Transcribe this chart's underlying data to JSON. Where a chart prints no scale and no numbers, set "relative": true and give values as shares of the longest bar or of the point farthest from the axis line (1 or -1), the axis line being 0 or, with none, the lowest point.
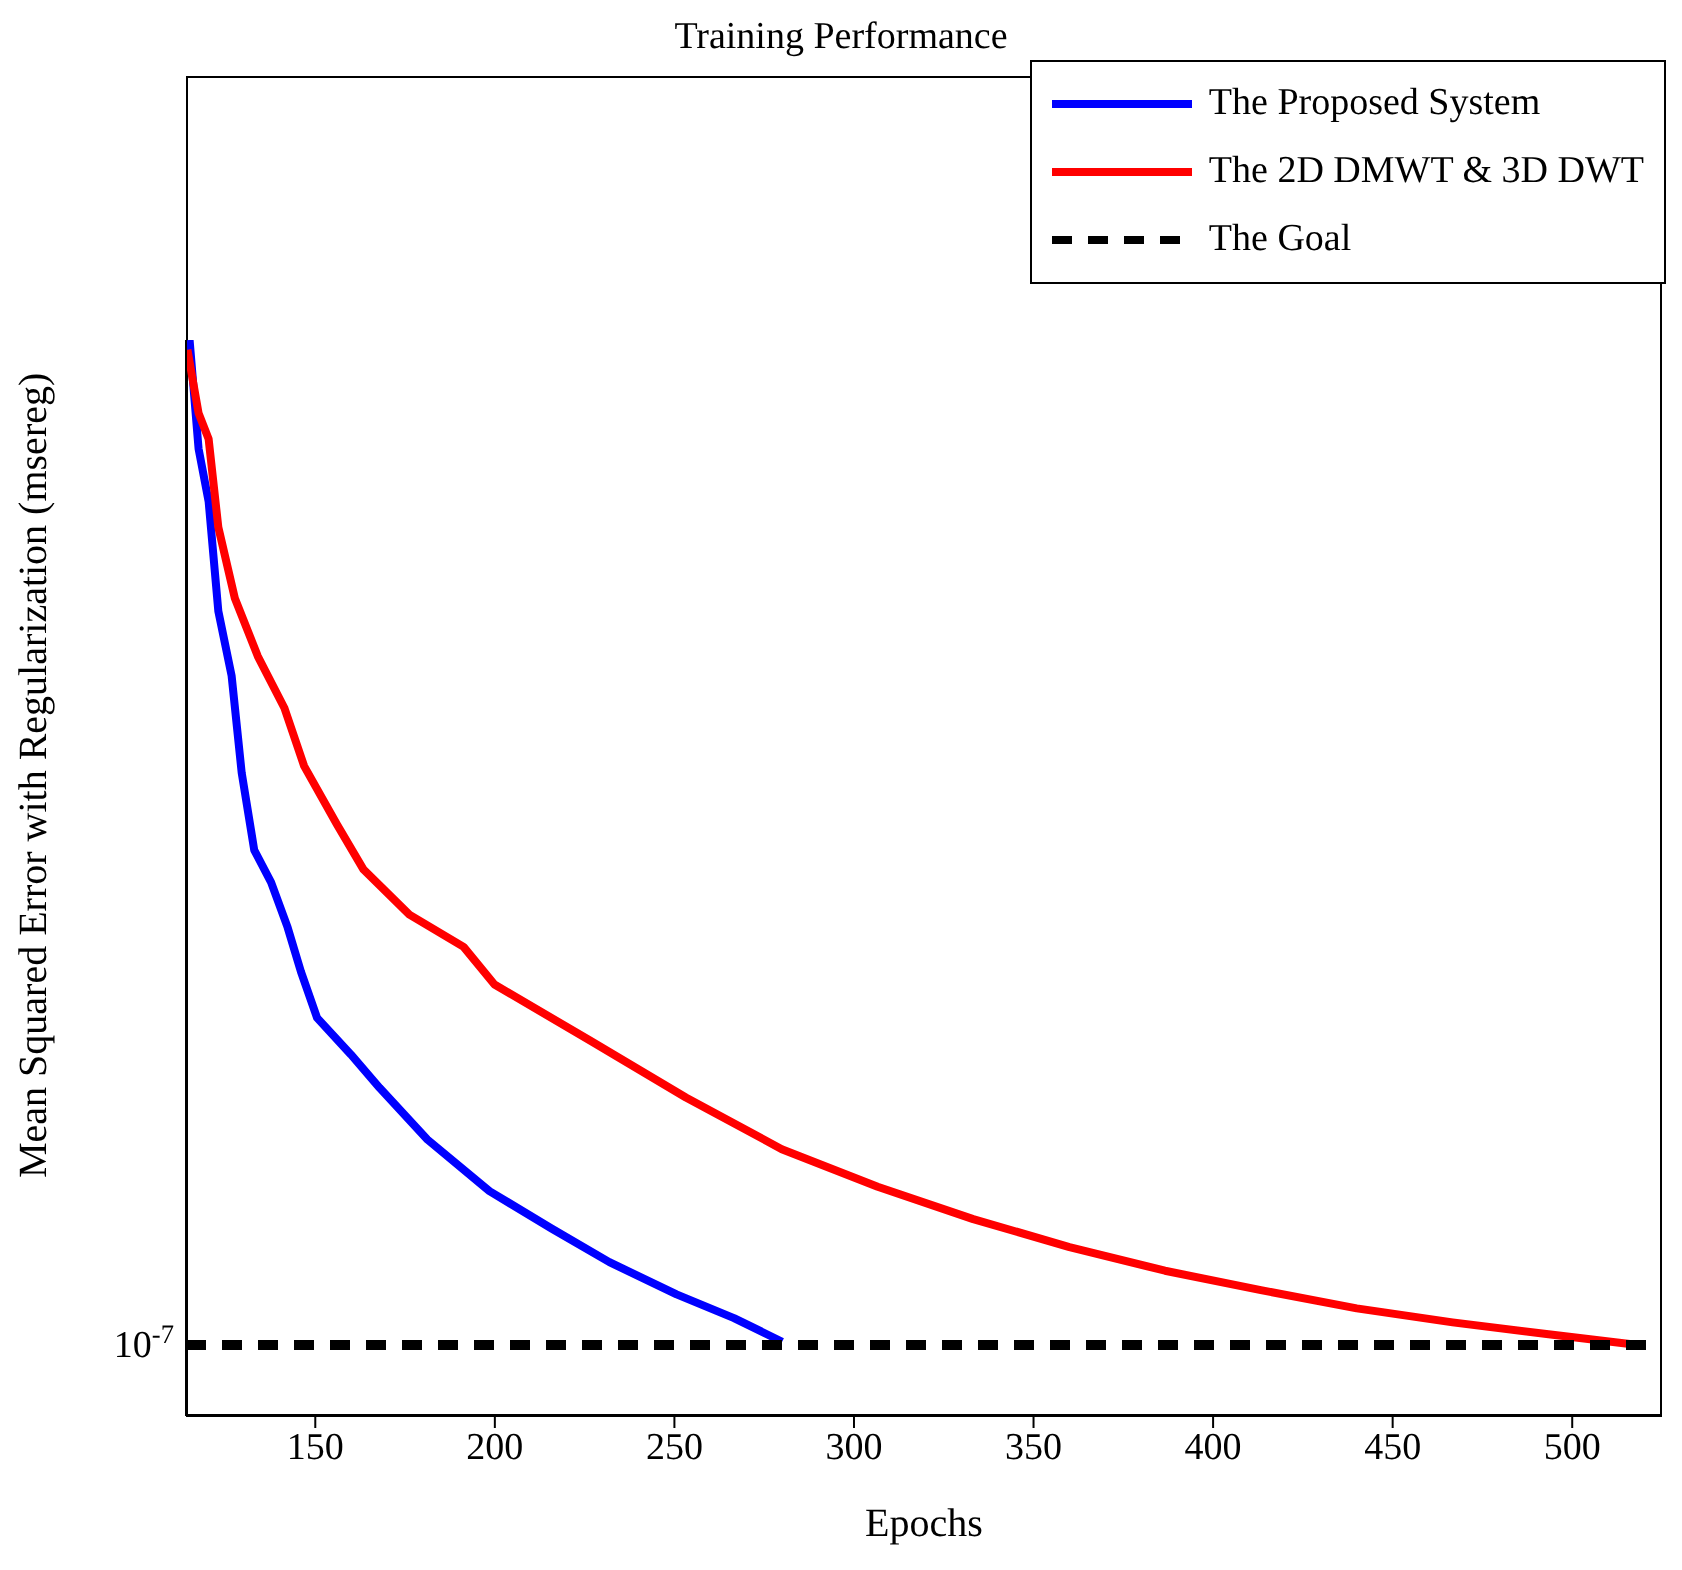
{
  "chart_data": {
    "type": "line",
    "title": "Training Performance",
    "xlabel": "Epochs",
    "ylabel": "Mean Squared Error with Regularization (msereg)",
    "relative": true,
    "xlim": [
      114,
      525
    ],
    "xticks": [
      150,
      200,
      250,
      300,
      350,
      400,
      450,
      500
    ],
    "legend": "top right",
    "marker": "none",
    "annotations": [
      "10$^{-7}$"
    ],
    "series": [
      {
        "name": "The Proposed System",
        "color": "#0000ff",
        "line_style": "solid",
        "x": [
          115,
          117.5,
          120.3,
          123,
          126.7,
          129.5,
          133,
          137.7,
          142.3,
          146,
          150.5,
          159.9,
          167.9,
          181.2,
          198.5,
          215.9,
          231.9,
          250.6,
          266.6,
          280
        ],
        "values": [
          1.0,
          0.899,
          0.85,
          0.748,
          0.688,
          0.598,
          0.526,
          0.496,
          0.454,
          0.413,
          0.37,
          0.336,
          0.305,
          0.257,
          0.209,
          0.174,
          0.143,
          0.113,
          0.091,
          0.069
        ]
      },
      {
        "name": "The 2D DMWT & 3D DWT",
        "color": "#ff0000",
        "line_style": "solid",
        "x": [
          114.4,
          117.5,
          120.3,
          123,
          127.6,
          134,
          141.4,
          146.9,
          156,
          163.4,
          176.2,
          191.3,
          199.9,
          226.5,
          253.2,
          279.9,
          306.6,
          333.2,
          360,
          386.6,
          413.3,
          440,
          466.7,
          493.4,
          516
        ],
        "values": [
          0.991,
          0.932,
          0.908,
          0.826,
          0.76,
          0.706,
          0.658,
          0.604,
          0.55,
          0.508,
          0.466,
          0.436,
          0.401,
          0.349,
          0.296,
          0.248,
          0.213,
          0.183,
          0.157,
          0.135,
          0.117,
          0.1,
          0.087,
          0.076,
          0.067
        ]
      },
      {
        "name": "The Goal",
        "color": "#000000",
        "line_style": "dashed",
        "x": [
          114,
          525
        ],
        "values": [
          0.066,
          0.066
        ]
      }
    ]
  }
}
